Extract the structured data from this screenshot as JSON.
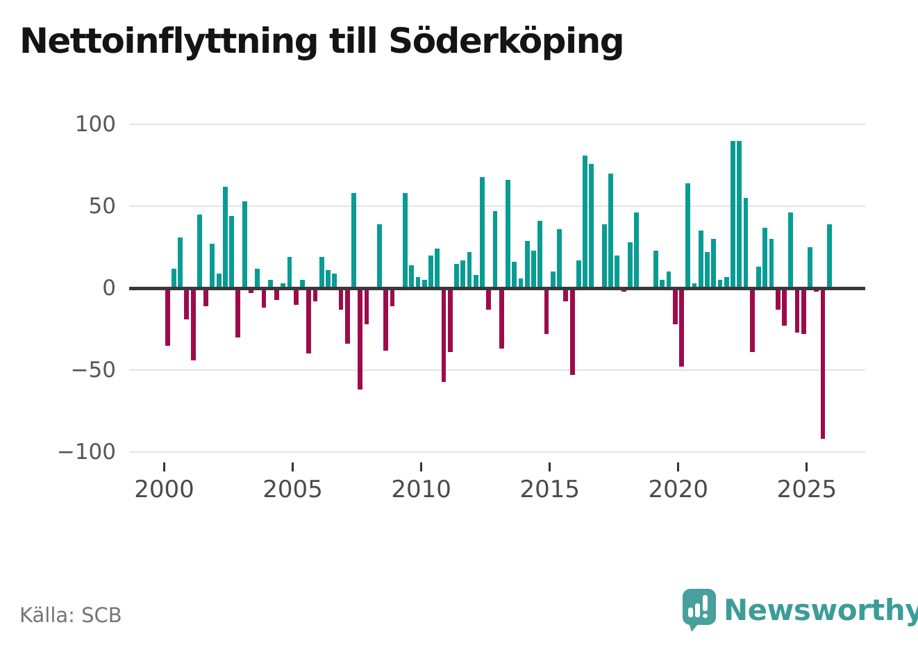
{
  "title": "Nettoinflyttning till Söderköping",
  "source": "Källa: SCB",
  "brand": {
    "name": "Newsworthy",
    "icon": "speech-bubble-bar-chart-icon"
  },
  "colors": {
    "positive_bar": "#089c94",
    "negative_bar": "#9e0b4b",
    "zero_axis": "#3a3a3a",
    "gridline": "#e4e4e4",
    "brand_teal": "#3d9c98"
  },
  "chart_data": {
    "type": "bar",
    "title": "Nettoinflyttning till Söderköping",
    "xlabel": "",
    "ylabel": "",
    "ylim": [
      -100,
      100
    ],
    "grid": "horizontal",
    "legend": "none",
    "frequency": "quarterly",
    "x_tick_labels": [
      "2000",
      "2005",
      "2010",
      "2015",
      "2020",
      "2025"
    ],
    "y_tick_labels": [
      "100",
      "50",
      "0",
      "−50",
      "−100"
    ],
    "y_ticks": [
      100,
      50,
      0,
      -50,
      -100
    ],
    "series_name": "Nettoinflyttning per kvartal",
    "years": [
      {
        "year": 2000,
        "q": [
          -35,
          12,
          31,
          -19
        ]
      },
      {
        "year": 2001,
        "q": [
          -44,
          45,
          -11,
          27
        ]
      },
      {
        "year": 2002,
        "q": [
          9,
          62,
          44,
          -30
        ]
      },
      {
        "year": 2003,
        "q": [
          53,
          -3,
          12,
          -12
        ]
      },
      {
        "year": 2004,
        "q": [
          5,
          -7,
          3,
          19
        ]
      },
      {
        "year": 2005,
        "q": [
          -10,
          5,
          -40,
          -8
        ]
      },
      {
        "year": 2006,
        "q": [
          19,
          11,
          9,
          -13
        ]
      },
      {
        "year": 2007,
        "q": [
          -34,
          58,
          -62,
          -22
        ]
      },
      {
        "year": 2008,
        "q": [
          0,
          39,
          -38,
          -11
        ]
      },
      {
        "year": 2009,
        "q": [
          0,
          58,
          14,
          7
        ]
      },
      {
        "year": 2010,
        "q": [
          5,
          20,
          24,
          -57
        ]
      },
      {
        "year": 2011,
        "q": [
          -39,
          15,
          17,
          22
        ]
      },
      {
        "year": 2012,
        "q": [
          8,
          68,
          -13,
          47
        ]
      },
      {
        "year": 2013,
        "q": [
          -37,
          66,
          16,
          6
        ]
      },
      {
        "year": 2014,
        "q": [
          29,
          23,
          41,
          -28
        ]
      },
      {
        "year": 2015,
        "q": [
          10,
          36,
          -8,
          -53
        ]
      },
      {
        "year": 2016,
        "q": [
          17,
          81,
          76,
          0
        ]
      },
      {
        "year": 2017,
        "q": [
          39,
          70,
          20,
          -2
        ]
      },
      {
        "year": 2018,
        "q": [
          28,
          46,
          0,
          0
        ]
      },
      {
        "year": 2019,
        "q": [
          23,
          5,
          10,
          -22
        ]
      },
      {
        "year": 2020,
        "q": [
          -48,
          64,
          3,
          35
        ]
      },
      {
        "year": 2021,
        "q": [
          22,
          30,
          5,
          7
        ]
      },
      {
        "year": 2022,
        "q": [
          90,
          90,
          55,
          -39
        ]
      },
      {
        "year": 2023,
        "q": [
          13,
          37,
          30,
          -13
        ]
      },
      {
        "year": 2024,
        "q": [
          -23,
          46,
          -27,
          -28
        ]
      },
      {
        "year": 2025,
        "q": [
          25,
          -2,
          -92,
          39
        ]
      }
    ]
  }
}
